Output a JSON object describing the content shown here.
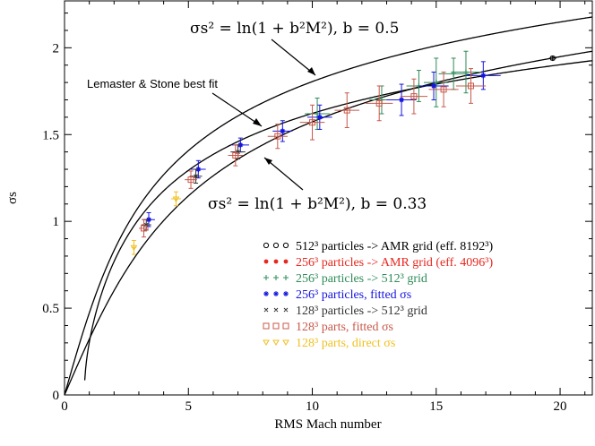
{
  "chart_data": {
    "type": "scatter",
    "title": "",
    "xlabel": "RMS Mach number",
    "ylabel": "σs",
    "xlim": [
      0,
      21.3
    ],
    "ylim": [
      0,
      2.27
    ],
    "x_ticks": [
      "0",
      "5",
      "10",
      "15",
      "20"
    ],
    "y_ticks": [
      "0",
      "0.5",
      "1",
      "1.5",
      "2"
    ],
    "curves": [
      {
        "name": "b=0.5",
        "b": 0.5,
        "kind": "log"
      },
      {
        "name": "Lemaster & Stone best fit",
        "kind": "lemaster"
      },
      {
        "name": "b=0.33",
        "b": 0.33,
        "kind": "log"
      }
    ],
    "annotations": [
      {
        "name": "annot-b05",
        "text": "σs² = ln(1 + b²M²), b = 0.5"
      },
      {
        "name": "annot-lemaster",
        "text": "Lemaster & Stone best fit"
      },
      {
        "name": "annot-b033",
        "text": "σs² = ln(1 + b²M²), b = 0.33"
      }
    ],
    "series": [
      {
        "name": "512³ particles -> AMR grid (eff. 8192³)",
        "marker": "circle",
        "color": "#000000",
        "points": [
          {
            "x": 19.7,
            "y": 1.94,
            "xe": 0.15,
            "ye": 0.01
          }
        ]
      },
      {
        "name": "256³ particles -> AMR grid (eff. 4096³)",
        "marker": "dot",
        "color": "#e8271e",
        "points": []
      },
      {
        "name": "256³ particles -> 512³ grid",
        "marker": "plus",
        "color": "#2e8b57",
        "points": [
          {
            "x": 10.2,
            "y": 1.62,
            "xe": 0.5,
            "ye": 0.09
          },
          {
            "x": 12.8,
            "y": 1.7,
            "xe": 0.5,
            "ye": 0.08
          },
          {
            "x": 14.3,
            "y": 1.78,
            "xe": 0.5,
            "ye": 0.09
          },
          {
            "x": 15.0,
            "y": 1.8,
            "xe": 0.5,
            "ye": 0.14
          },
          {
            "x": 15.7,
            "y": 1.85,
            "xe": 0.6,
            "ye": 0.09
          },
          {
            "x": 16.2,
            "y": 1.86,
            "xe": 0.6,
            "ye": 0.12
          }
        ]
      },
      {
        "name": "256³ particles, fitted σs",
        "marker": "star",
        "color": "#1515e0",
        "points": [
          {
            "x": 3.4,
            "y": 1.01,
            "xe": 0.25,
            "ye": 0.04
          },
          {
            "x": 5.4,
            "y": 1.3,
            "xe": 0.3,
            "ye": 0.05
          },
          {
            "x": 7.1,
            "y": 1.44,
            "xe": 0.35,
            "ye": 0.04
          },
          {
            "x": 8.8,
            "y": 1.52,
            "xe": 0.4,
            "ye": 0.06
          },
          {
            "x": 10.3,
            "y": 1.6,
            "xe": 0.5,
            "ye": 0.07
          },
          {
            "x": 13.6,
            "y": 1.7,
            "xe": 0.6,
            "ye": 0.09
          },
          {
            "x": 14.9,
            "y": 1.78,
            "xe": 0.6,
            "ye": 0.08
          },
          {
            "x": 16.9,
            "y": 1.84,
            "xe": 0.7,
            "ye": 0.08
          }
        ]
      },
      {
        "name": "128³ particles -> 512³ grid",
        "marker": "cross",
        "color": "#333333",
        "points": [
          {
            "x": 3.3,
            "y": 0.98,
            "xe": 0.2,
            "ye": 0.03
          },
          {
            "x": 5.3,
            "y": 1.26,
            "xe": 0.25,
            "ye": 0.04
          },
          {
            "x": 7.0,
            "y": 1.4,
            "xe": 0.3,
            "ye": 0.04
          }
        ]
      },
      {
        "name": "128³ parts, fitted σs",
        "marker": "square",
        "color": "#c8584a",
        "points": [
          {
            "x": 3.2,
            "y": 0.96,
            "xe": 0.2,
            "ye": 0.05
          },
          {
            "x": 5.1,
            "y": 1.24,
            "xe": 0.25,
            "ye": 0.05
          },
          {
            "x": 6.9,
            "y": 1.38,
            "xe": 0.3,
            "ye": 0.06
          },
          {
            "x": 8.6,
            "y": 1.49,
            "xe": 0.4,
            "ye": 0.07
          },
          {
            "x": 10.0,
            "y": 1.57,
            "xe": 0.5,
            "ye": 0.1
          },
          {
            "x": 11.4,
            "y": 1.64,
            "xe": 0.5,
            "ye": 0.1
          },
          {
            "x": 12.7,
            "y": 1.68,
            "xe": 0.55,
            "ye": 0.1
          },
          {
            "x": 14.1,
            "y": 1.72,
            "xe": 0.55,
            "ye": 0.1
          },
          {
            "x": 15.3,
            "y": 1.76,
            "xe": 0.6,
            "ye": 0.1
          },
          {
            "x": 16.4,
            "y": 1.78,
            "xe": 0.6,
            "ye": 0.1
          }
        ]
      },
      {
        "name": "128³ parts, direct σs",
        "marker": "triangle",
        "color": "#f0c020",
        "points": [
          {
            "x": 2.8,
            "y": 0.85,
            "xe": 0.1,
            "ye": 0.04
          },
          {
            "x": 4.5,
            "y": 1.13,
            "xe": 0.2,
            "ye": 0.04
          }
        ]
      }
    ]
  }
}
